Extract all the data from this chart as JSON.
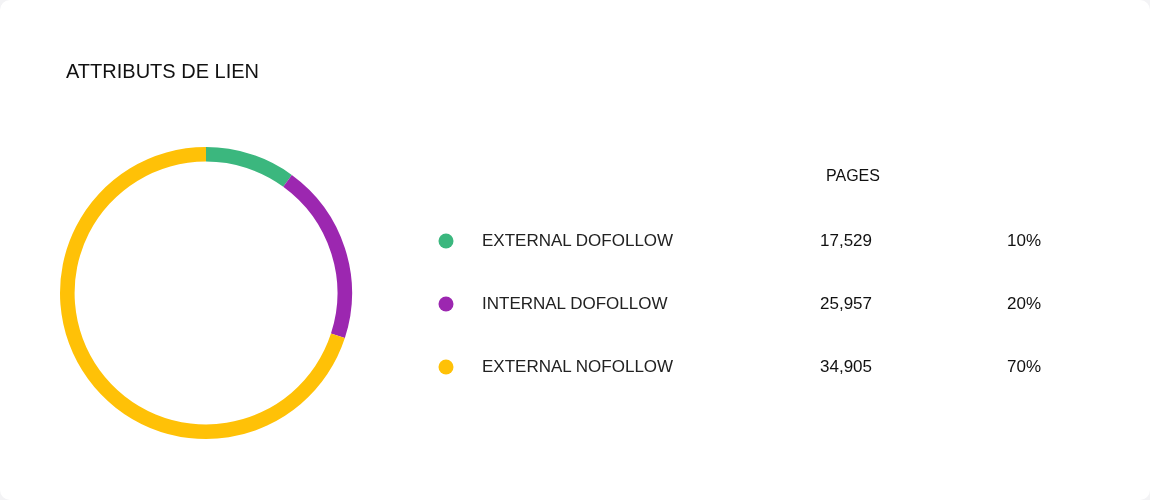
{
  "chart_data": {
    "type": "donut",
    "title": "ATTRIBUTS DE LIEN",
    "categories": [
      "EXTERNAL DOFOLLOW",
      "INTERNAL DOFOLLOW",
      "EXTERNAL NOFOLLOW"
    ],
    "values": [
      10,
      20,
      70
    ],
    "colors": [
      "#3bb77e",
      "#9c27b0",
      "#ffc107"
    ],
    "value_labels": [
      "10%",
      "20%",
      "70%"
    ],
    "legend": "right",
    "annotations": [
      "PAGES",
      "17,529",
      "25,957",
      "34,905"
    ]
  }
}
